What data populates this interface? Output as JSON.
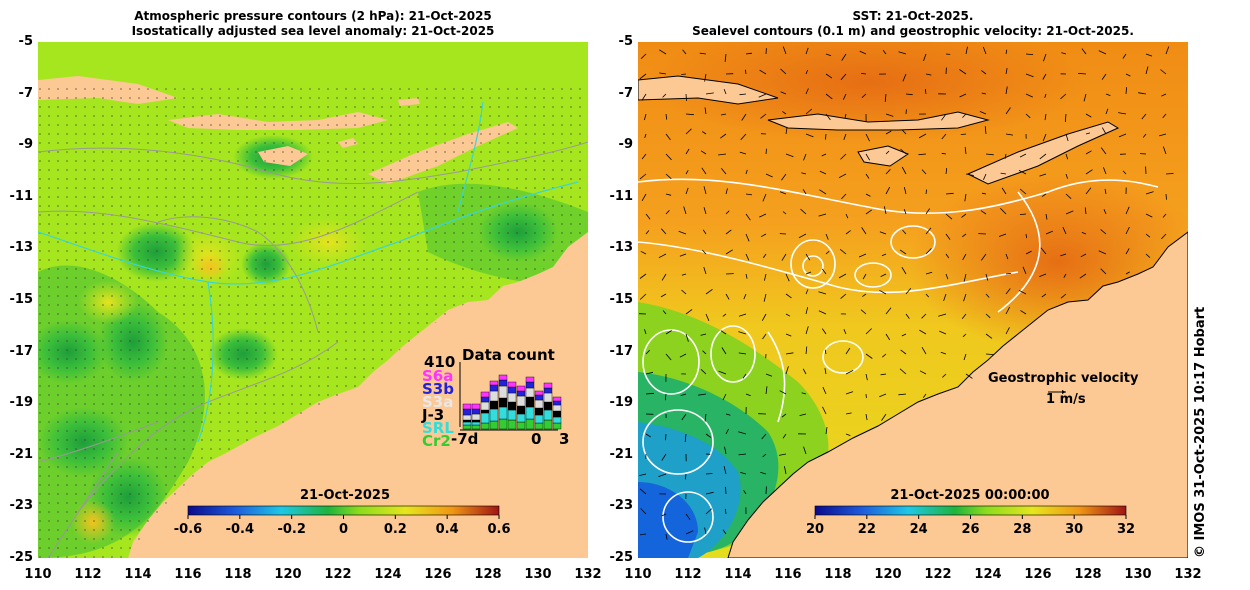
{
  "left_panel": {
    "title_line1": "Atmospheric pressure contours (2 hPa): 21-Oct-2025",
    "title_line2": "Isostatically adjusted sea level anomaly: 21-Oct-2025",
    "colorbar_date": "21-Oct-2025",
    "colorbar_ticks": [
      "-0.6",
      "-0.4",
      "-0.2",
      "0",
      "0.2",
      "0.4",
      "0.6"
    ],
    "colorbar_range": [
      -0.6,
      0.6
    ],
    "data_count": {
      "max_label": "410",
      "title": "Data count",
      "satellites": [
        "S6a",
        "S3b",
        "S3a",
        "J-3",
        "SRL",
        "Cr2"
      ],
      "sat_colors": [
        "#ff33ff",
        "#2222dd",
        "#dddddd",
        "#000000",
        "#33dddd",
        "#33cc33"
      ],
      "axis_start": "-7d",
      "axis_zero": "0",
      "axis_end": "3"
    }
  },
  "right_panel": {
    "title_line1": "SST: 21-Oct-2025.",
    "title_line2": "Sealevel contours (0.1 m) and geostrophic velocity: 21-Oct-2025.",
    "colorbar_date": "21-Oct-2025 00:00:00",
    "colorbar_ticks": [
      "20",
      "22",
      "24",
      "26",
      "28",
      "30",
      "32"
    ],
    "colorbar_range": [
      20,
      32
    ],
    "geostrophic_label": "Geostrophic velocity",
    "velocity_scale_label": "1 m/s"
  },
  "y_axis_labels": [
    "-5",
    "-7",
    "-9",
    "-11",
    "-13",
    "-15",
    "-17",
    "-19",
    "-21",
    "-23",
    "-25"
  ],
  "x_axis_labels": [
    "110",
    "112",
    "114",
    "116",
    "118",
    "120",
    "122",
    "124",
    "126",
    "128",
    "130",
    "132"
  ],
  "credit": "© IMOS 31-Oct-2025 10:17 Hobart",
  "colors": {
    "land": "#fcc894",
    "ssla_base": "#a6e61e",
    "sst_base": "#f5a623",
    "contour_grey": "#999999",
    "contour_white": "#ffffff"
  }
}
